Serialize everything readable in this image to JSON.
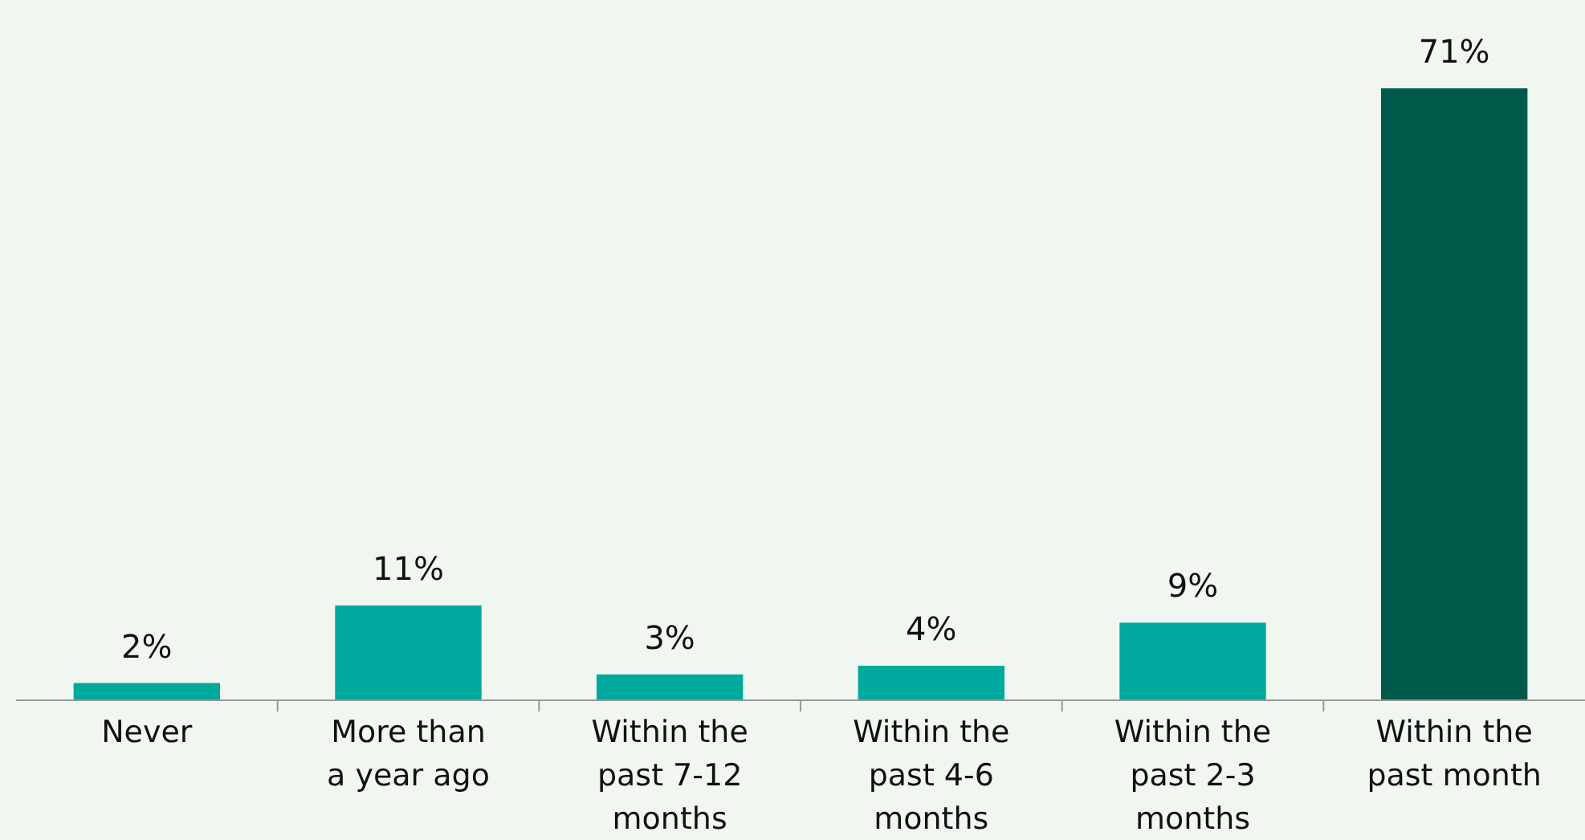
{
  "chart_data": {
    "type": "bar",
    "categories": [
      "Never",
      "More than a year ago",
      "Within the past 7-12 months",
      "Within the past 4-6 months",
      "Within the past 2-3 months",
      "Within the past month"
    ],
    "values": [
      2,
      11,
      3,
      4,
      9,
      71
    ],
    "colors": [
      "#00a99d",
      "#00a99d",
      "#00a99d",
      "#00a99d",
      "#00a99d",
      "#005a4c"
    ],
    "value_labels": [
      "2%",
      "11%",
      "3%",
      "4%",
      "9%",
      "71%"
    ]
  }
}
